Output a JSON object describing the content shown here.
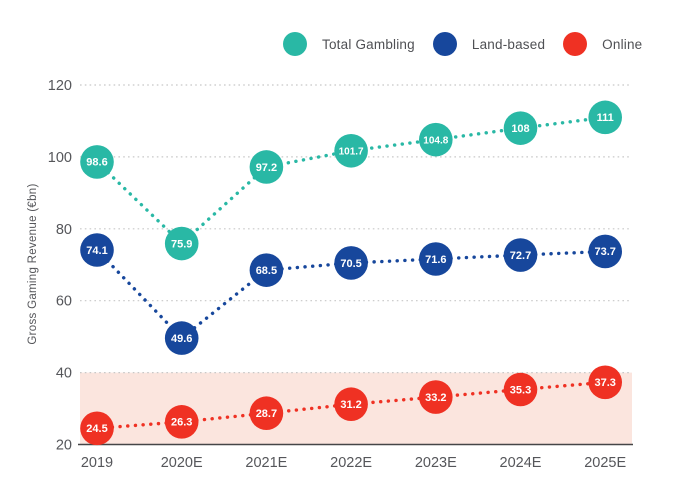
{
  "page": {
    "background": "#ffffff"
  },
  "chart_data": {
    "type": "line",
    "title": "",
    "xlabel": "",
    "ylabel": "Gross Gaming Revenue (€bn)",
    "categories": [
      "2019",
      "2020E",
      "2021E",
      "2022E",
      "2023E",
      "2024E",
      "2025E"
    ],
    "series": [
      {
        "name": "Total Gambling",
        "color": "#29b8a5",
        "values": [
          98.6,
          75.9,
          97.2,
          101.7,
          104.8,
          108,
          111
        ]
      },
      {
        "name": "Land-based",
        "color": "#17479c",
        "values": [
          74.1,
          49.6,
          68.5,
          70.5,
          71.6,
          72.7,
          73.7
        ]
      },
      {
        "name": "Online",
        "color": "#ef3123",
        "values": [
          24.5,
          26.3,
          28.7,
          31.2,
          33.2,
          35.3,
          37.3
        ]
      }
    ],
    "ylim": [
      20,
      120
    ],
    "yticks": [
      20,
      40,
      60,
      80,
      100,
      120
    ],
    "grid": true,
    "legend_position": "top",
    "band": {
      "from": 20,
      "to": 40,
      "color": "#fbe5de"
    },
    "style": {
      "grid_color": "#c8c8c8",
      "axis_line_color": "#454547",
      "tick_label_color": "#55565a",
      "axis_title_color": "#55565a",
      "marker_label_color": "#ffffff"
    }
  }
}
